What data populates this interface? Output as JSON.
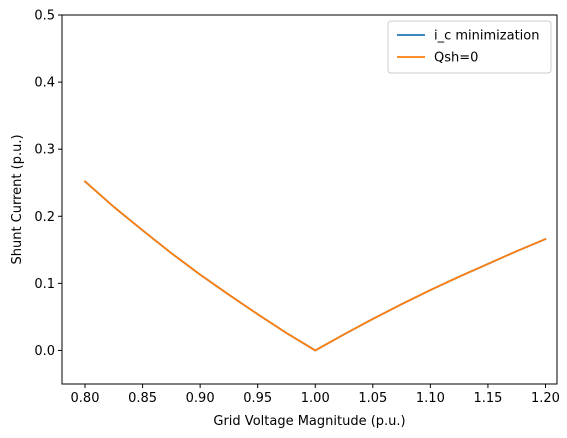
{
  "chart_data": {
    "type": "line",
    "title": "",
    "xlabel": "Grid Voltage Magnitude (p.u.)",
    "ylabel": "Shunt Current (p.u.)",
    "xlim": [
      0.78,
      1.21
    ],
    "ylim": [
      -0.05,
      0.5
    ],
    "xticks": [
      0.8,
      0.85,
      0.9,
      0.95,
      1.0,
      1.05,
      1.1,
      1.15,
      1.2
    ],
    "xtick_labels": [
      "0.80",
      "0.85",
      "0.90",
      "0.95",
      "1.00",
      "1.05",
      "1.10",
      "1.15",
      "1.20"
    ],
    "yticks": [
      0.0,
      0.1,
      0.2,
      0.3,
      0.4,
      0.5
    ],
    "ytick_labels": [
      "0.0",
      "0.1",
      "0.2",
      "0.3",
      "0.4",
      "0.5"
    ],
    "grid": false,
    "legend_position": "top-right",
    "x": [
      0.8,
      0.825,
      0.85,
      0.875,
      0.9,
      0.925,
      0.95,
      0.975,
      1.0,
      1.025,
      1.05,
      1.075,
      1.1,
      1.125,
      1.15,
      1.175,
      1.2
    ],
    "series": [
      {
        "name": "i_c minimization",
        "color": "#1f77b4",
        "values": [
          0.252,
          0.214,
          0.179,
          0.145,
          0.113,
          0.083,
          0.054,
          0.026,
          0.0,
          0.024,
          0.047,
          0.069,
          0.09,
          0.11,
          0.129,
          0.148,
          0.166
        ]
      },
      {
        "name": "Qsh=0",
        "color": "#ff7f0e",
        "values": [
          0.252,
          0.214,
          0.179,
          0.145,
          0.113,
          0.083,
          0.054,
          0.026,
          0.0,
          0.024,
          0.047,
          0.069,
          0.09,
          0.11,
          0.129,
          0.148,
          0.166
        ]
      }
    ]
  }
}
